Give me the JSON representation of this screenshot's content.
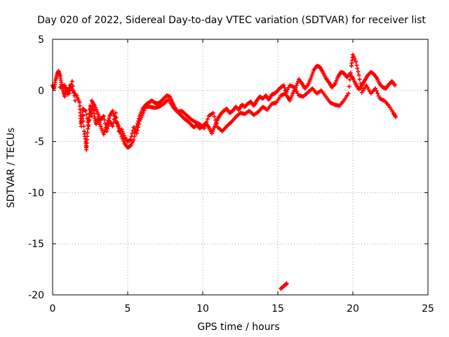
{
  "chart_data": {
    "type": "scatter",
    "title": "Day 020 of 2022, Sidereal Day-to-day VTEC variation (SDTVAR) for receiver list",
    "xlabel": "GPS time / hours",
    "ylabel": "SDTVAR / TECUs",
    "xlim": [
      0,
      25
    ],
    "ylim": [
      -20,
      5
    ],
    "xticks": [
      "0",
      "5",
      "10",
      "15",
      "20",
      "25"
    ],
    "yticks": [
      "5",
      "0",
      "-5",
      "-10",
      "-15",
      "-20"
    ],
    "grid": true,
    "legend": "none",
    "series": [
      {
        "name": "SDTVAR",
        "color": "#ff0000",
        "marker": "plus",
        "points": [
          [
            0.0,
            0.5
          ],
          [
            0.1,
            0.2
          ],
          [
            0.2,
            1.0
          ],
          [
            0.3,
            1.6
          ],
          [
            0.4,
            1.9
          ],
          [
            0.5,
            1.4
          ],
          [
            0.6,
            0.6
          ],
          [
            0.7,
            0.0
          ],
          [
            0.8,
            -0.6
          ],
          [
            0.9,
            0.2
          ],
          [
            1.0,
            -0.4
          ],
          [
            1.15,
            0.5
          ],
          [
            1.4,
            -0.2
          ],
          [
            1.6,
            -0.5
          ],
          [
            1.8,
            -1.2
          ],
          [
            1.85,
            -2.5
          ],
          [
            1.9,
            -3.5
          ],
          [
            2.0,
            -2.0
          ],
          [
            2.1,
            -4.0
          ],
          [
            2.2,
            -5.0
          ],
          [
            2.25,
            -5.8
          ],
          [
            2.3,
            -4.5
          ],
          [
            2.4,
            -3.0
          ],
          [
            2.5,
            -1.5
          ],
          [
            2.6,
            -2.5
          ],
          [
            2.7,
            -1.3
          ],
          [
            2.8,
            -2.6
          ],
          [
            2.9,
            -3.3
          ],
          [
            3.0,
            -2.8
          ],
          [
            3.2,
            -3.5
          ],
          [
            3.4,
            -4.3
          ],
          [
            3.6,
            -3.4
          ],
          [
            3.8,
            -2.5
          ],
          [
            4.0,
            -2.0
          ],
          [
            4.2,
            -3.0
          ],
          [
            4.4,
            -3.5
          ],
          [
            4.6,
            -4.5
          ],
          [
            4.8,
            -5.2
          ],
          [
            5.0,
            -5.6
          ],
          [
            5.2,
            -5.4
          ],
          [
            5.4,
            -4.8
          ],
          [
            5.6,
            -3.5
          ],
          [
            5.8,
            -2.5
          ],
          [
            6.0,
            -1.8
          ],
          [
            6.2,
            -1.4
          ],
          [
            6.4,
            -1.2
          ],
          [
            6.6,
            -1.0
          ],
          [
            6.8,
            -1.2
          ],
          [
            7.0,
            -1.3
          ],
          [
            7.2,
            -1.1
          ],
          [
            7.4,
            -0.8
          ],
          [
            7.6,
            -0.5
          ],
          [
            7.8,
            -0.6
          ],
          [
            8.0,
            -1.2
          ],
          [
            8.2,
            -1.8
          ],
          [
            8.4,
            -2.2
          ],
          [
            8.6,
            -2.5
          ],
          [
            8.8,
            -2.8
          ],
          [
            9.0,
            -3.0
          ],
          [
            9.2,
            -3.3
          ],
          [
            9.4,
            -3.6
          ],
          [
            9.6,
            -3.4
          ],
          [
            9.8,
            -3.7
          ],
          [
            10.0,
            -3.5
          ],
          [
            10.2,
            -3.2
          ],
          [
            10.4,
            -3.6
          ],
          [
            10.6,
            -4.2
          ],
          [
            10.8,
            -3.5
          ],
          [
            11.0,
            -2.8
          ],
          [
            11.2,
            -2.3
          ],
          [
            11.4,
            -2.0
          ],
          [
            11.6,
            -1.8
          ],
          [
            11.8,
            -2.2
          ],
          [
            12.0,
            -2.0
          ],
          [
            12.2,
            -1.6
          ],
          [
            12.4,
            -1.9
          ],
          [
            12.6,
            -1.4
          ],
          [
            12.8,
            -1.6
          ],
          [
            13.0,
            -1.3
          ],
          [
            13.2,
            -1.1
          ],
          [
            13.4,
            -1.5
          ],
          [
            13.6,
            -1.0
          ],
          [
            13.8,
            -0.6
          ],
          [
            14.0,
            -0.8
          ],
          [
            14.2,
            -0.5
          ],
          [
            14.4,
            -0.9
          ],
          [
            14.6,
            -0.4
          ],
          [
            14.8,
            -0.3
          ],
          [
            15.0,
            0.0
          ],
          [
            15.2,
            0.3
          ],
          [
            15.4,
            0.5
          ],
          [
            15.6,
            -0.5
          ],
          [
            15.8,
            -1.0
          ],
          [
            16.0,
            -0.3
          ],
          [
            16.2,
            0.3
          ],
          [
            16.4,
            1.1
          ],
          [
            16.6,
            0.7
          ],
          [
            16.8,
            0.2
          ],
          [
            17.0,
            0.5
          ],
          [
            17.2,
            1.2
          ],
          [
            17.4,
            2.0
          ],
          [
            17.6,
            2.4
          ],
          [
            17.8,
            2.3
          ],
          [
            18.0,
            1.8
          ],
          [
            18.2,
            1.2
          ],
          [
            18.4,
            0.8
          ],
          [
            18.6,
            0.3
          ],
          [
            18.8,
            0.6
          ],
          [
            19.0,
            1.3
          ],
          [
            19.2,
            1.8
          ],
          [
            19.4,
            1.7
          ],
          [
            19.6,
            1.3
          ],
          [
            19.8,
            1.6
          ],
          [
            20.0,
            1.2
          ],
          [
            20.2,
            0.6
          ],
          [
            20.4,
            0.1
          ],
          [
            20.6,
            0.5
          ],
          [
            20.8,
            1.0
          ],
          [
            21.0,
            1.5
          ],
          [
            21.2,
            1.8
          ],
          [
            21.4,
            1.6
          ],
          [
            21.6,
            1.2
          ],
          [
            21.8,
            0.6
          ],
          [
            22.0,
            0.3
          ],
          [
            22.2,
            0.2
          ],
          [
            22.4,
            0.6
          ],
          [
            22.6,
            0.9
          ],
          [
            22.8,
            0.5
          ],
          [
            0.5,
            0.3
          ],
          [
            0.8,
            0.5
          ],
          [
            1.1,
            -0.3
          ],
          [
            1.3,
            0.9
          ],
          [
            1.5,
            -1.0
          ],
          [
            2.0,
            -1.8
          ],
          [
            2.2,
            -2.0
          ],
          [
            2.4,
            -3.5
          ],
          [
            2.6,
            -1.0
          ],
          [
            2.8,
            -1.5
          ],
          [
            3.0,
            -2.2
          ],
          [
            3.2,
            -2.9
          ],
          [
            3.4,
            -2.5
          ],
          [
            3.6,
            -4.0
          ],
          [
            3.8,
            -3.0
          ],
          [
            4.0,
            -3.5
          ],
          [
            4.2,
            -2.2
          ],
          [
            4.4,
            -4.0
          ],
          [
            4.6,
            -3.8
          ],
          [
            4.8,
            -4.6
          ],
          [
            5.0,
            -5.0
          ],
          [
            5.2,
            -4.8
          ],
          [
            5.4,
            -3.6
          ],
          [
            5.6,
            -4.2
          ],
          [
            5.8,
            -3.0
          ],
          [
            6.0,
            -2.3
          ],
          [
            6.2,
            -1.6
          ],
          [
            6.5,
            -1.6
          ],
          [
            6.8,
            -1.7
          ],
          [
            7.1,
            -1.6
          ],
          [
            7.4,
            -1.3
          ],
          [
            7.7,
            -0.9
          ],
          [
            8.0,
            -1.6
          ],
          [
            8.3,
            -2.1
          ],
          [
            8.6,
            -2.0
          ],
          [
            8.9,
            -2.4
          ],
          [
            9.2,
            -2.8
          ],
          [
            9.5,
            -3.1
          ],
          [
            9.8,
            -3.3
          ],
          [
            10.1,
            -3.7
          ],
          [
            10.4,
            -2.5
          ],
          [
            10.7,
            -2.2
          ],
          [
            11.0,
            -3.6
          ],
          [
            11.3,
            -4.0
          ],
          [
            11.6,
            -3.5
          ],
          [
            11.9,
            -3.1
          ],
          [
            12.2,
            -2.6
          ],
          [
            12.5,
            -2.2
          ],
          [
            12.8,
            -2.3
          ],
          [
            13.1,
            -2.0
          ],
          [
            13.4,
            -2.4
          ],
          [
            13.7,
            -2.1
          ],
          [
            14.0,
            -1.6
          ],
          [
            14.3,
            -1.9
          ],
          [
            14.6,
            -1.3
          ],
          [
            14.9,
            -1.2
          ],
          [
            15.2,
            -0.5
          ],
          [
            15.5,
            -0.3
          ],
          [
            15.8,
            0.5
          ],
          [
            16.1,
            0.3
          ],
          [
            16.4,
            -0.5
          ],
          [
            16.7,
            -0.6
          ],
          [
            17.0,
            -0.2
          ],
          [
            17.3,
            0.2
          ],
          [
            17.6,
            -0.3
          ],
          [
            17.9,
            0.0
          ],
          [
            18.2,
            -0.6
          ],
          [
            18.5,
            -1.2
          ],
          [
            18.8,
            -1.4
          ],
          [
            19.1,
            -1.5
          ],
          [
            19.4,
            -1.0
          ],
          [
            19.7,
            -0.3
          ],
          [
            19.9,
            2.4
          ],
          [
            20.0,
            3.5
          ],
          [
            20.2,
            2.8
          ],
          [
            20.4,
            1.5
          ],
          [
            20.6,
            -0.2
          ],
          [
            20.9,
            0.5
          ],
          [
            21.2,
            -0.3
          ],
          [
            21.5,
            0.2
          ],
          [
            21.8,
            -0.8
          ],
          [
            22.1,
            -1.0
          ],
          [
            22.4,
            -1.5
          ],
          [
            22.7,
            -2.2
          ],
          [
            22.85,
            -2.6
          ],
          [
            15.2,
            -19.4
          ],
          [
            15.35,
            -19.2
          ],
          [
            15.5,
            -19.0
          ],
          [
            15.6,
            -18.9
          ]
        ]
      }
    ]
  }
}
